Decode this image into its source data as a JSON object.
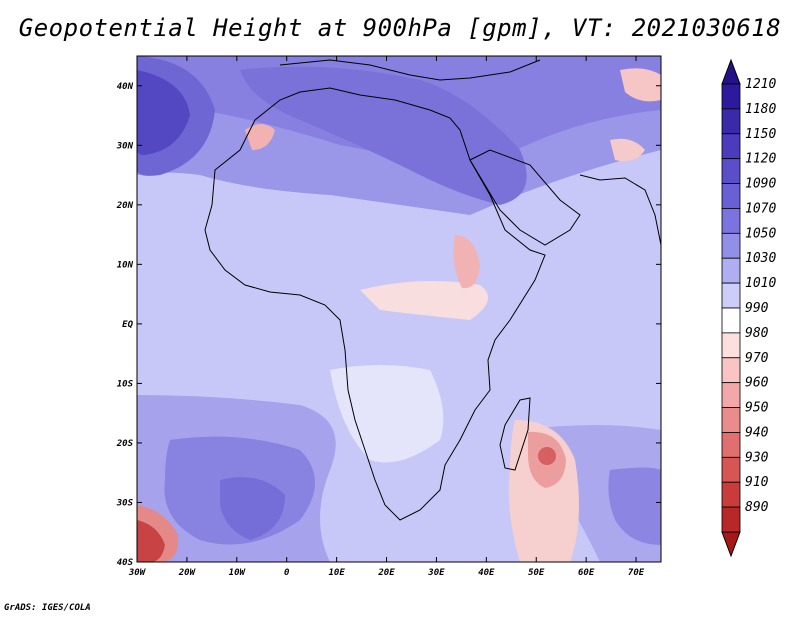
{
  "title": "Geopotential Height at 900hPa [gpm], VT: 2021030618",
  "credit": "GrADS: IGES/COLA",
  "map": {
    "region": "Africa",
    "lon_range": [
      -30,
      75
    ],
    "lat_range": [
      -40,
      45
    ],
    "lat_ticks": [
      {
        "value": 40,
        "label": "40N"
      },
      {
        "value": 30,
        "label": "30N"
      },
      {
        "value": 20,
        "label": "20N"
      },
      {
        "value": 10,
        "label": "10N"
      },
      {
        "value": 0,
        "label": "EQ"
      },
      {
        "value": -10,
        "label": "10S"
      },
      {
        "value": -20,
        "label": "20S"
      },
      {
        "value": -30,
        "label": "30S"
      },
      {
        "value": -40,
        "label": "40S"
      }
    ],
    "lon_ticks": [
      {
        "value": -30,
        "label": "30W"
      },
      {
        "value": -20,
        "label": "20W"
      },
      {
        "value": -10,
        "label": "10W"
      },
      {
        "value": 0,
        "label": "0"
      },
      {
        "value": 10,
        "label": "10E"
      },
      {
        "value": 20,
        "label": "20E"
      },
      {
        "value": 30,
        "label": "30E"
      },
      {
        "value": 40,
        "label": "40E"
      },
      {
        "value": 50,
        "label": "50E"
      },
      {
        "value": 60,
        "label": "60E"
      },
      {
        "value": 70,
        "label": "70E"
      }
    ],
    "background_color": "#c8c8f8"
  },
  "colorbar": {
    "levels": [
      {
        "label": "1210",
        "color": "#2c1a9c"
      },
      {
        "label": "1180",
        "color": "#3a2aaa"
      },
      {
        "label": "1150",
        "color": "#4a3cbc"
      },
      {
        "label": "1120",
        "color": "#5a4ecb"
      },
      {
        "label": "1090",
        "color": "#6a60d6"
      },
      {
        "label": "1070",
        "color": "#7c74de"
      },
      {
        "label": "1050",
        "color": "#9290e6"
      },
      {
        "label": "1030",
        "color": "#aeaef0"
      },
      {
        "label": "1010",
        "color": "#cccdf8"
      },
      {
        "label": "990",
        "color": "#ffffff"
      },
      {
        "label": "980",
        "color": "#fce0e0"
      },
      {
        "label": "970",
        "color": "#f8c4c4"
      },
      {
        "label": "960",
        "color": "#f2a8a8"
      },
      {
        "label": "950",
        "color": "#ea8c8c"
      },
      {
        "label": "940",
        "color": "#e07070"
      },
      {
        "label": "930",
        "color": "#d65656"
      },
      {
        "label": "910",
        "color": "#c83c3c"
      },
      {
        "label": "890",
        "color": "#b82828"
      }
    ],
    "top_cap_color": "#24128a",
    "bottom_cap_color": "#a81818"
  }
}
